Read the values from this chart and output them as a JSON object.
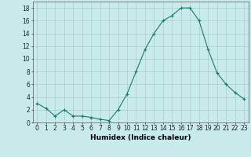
{
  "xlabel": "Humidex (Indice chaleur)",
  "background_color": "#c8eaea",
  "grid_color": "#a8cccc",
  "line_color": "#1a7a6a",
  "marker_color": "#1a7a6a",
  "x": [
    0,
    1,
    2,
    3,
    4,
    5,
    6,
    7,
    8,
    9,
    10,
    11,
    12,
    13,
    14,
    15,
    16,
    17,
    18,
    19,
    20,
    21,
    22,
    23
  ],
  "y": [
    3.0,
    2.2,
    1.0,
    2.0,
    1.0,
    1.0,
    0.8,
    0.5,
    0.3,
    2.0,
    4.5,
    8.0,
    11.5,
    14.0,
    16.0,
    16.8,
    18.0,
    18.0,
    16.0,
    11.5,
    7.8,
    6.0,
    4.7,
    3.7
  ],
  "xlim": [
    -0.5,
    23.5
  ],
  "ylim": [
    0,
    19
  ],
  "yticks": [
    0,
    2,
    4,
    6,
    8,
    10,
    12,
    14,
    16,
    18
  ],
  "tick_fontsize": 5.5,
  "xlabel_fontsize": 6.5
}
